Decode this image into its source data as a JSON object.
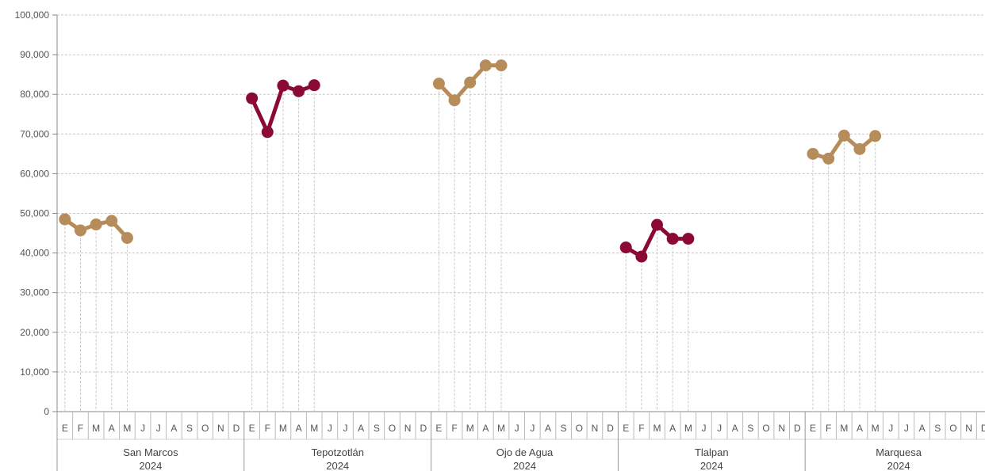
{
  "chart_data": {
    "type": "line",
    "title": "",
    "xlabel": "",
    "ylabel": "",
    "ylim": [
      0,
      100000
    ],
    "yticks": [
      0,
      10000,
      20000,
      30000,
      40000,
      50000,
      60000,
      70000,
      80000,
      90000,
      100000
    ],
    "ytick_labels": [
      "0",
      "10,000",
      "20,000",
      "30,000",
      "40,000",
      "50,000",
      "60,000",
      "70,000",
      "80,000",
      "90,000",
      "100,000"
    ],
    "grid": true,
    "months": [
      "E",
      "F",
      "M",
      "A",
      "M",
      "J",
      "J",
      "A",
      "S",
      "O",
      "N",
      "D"
    ],
    "year_label": "2024",
    "groups": [
      {
        "name": "San Marcos",
        "color": "#b58c5a",
        "values": [
          48500,
          45700,
          47200,
          48100,
          43800
        ]
      },
      {
        "name": "Tepotzotlán",
        "color": "#8a0a33",
        "values": [
          79000,
          70500,
          82200,
          80800,
          82300
        ]
      },
      {
        "name": "Ojo de Agua",
        "color": "#b58c5a",
        "values": [
          82700,
          78500,
          83000,
          87300,
          87300
        ]
      },
      {
        "name": "Tlalpan",
        "color": "#8a0a33",
        "values": [
          41400,
          39100,
          47100,
          43600,
          43600
        ]
      },
      {
        "name": "Marquesa",
        "color": "#b58c5a",
        "values": [
          65000,
          63800,
          69600,
          66200,
          69500
        ]
      }
    ]
  }
}
